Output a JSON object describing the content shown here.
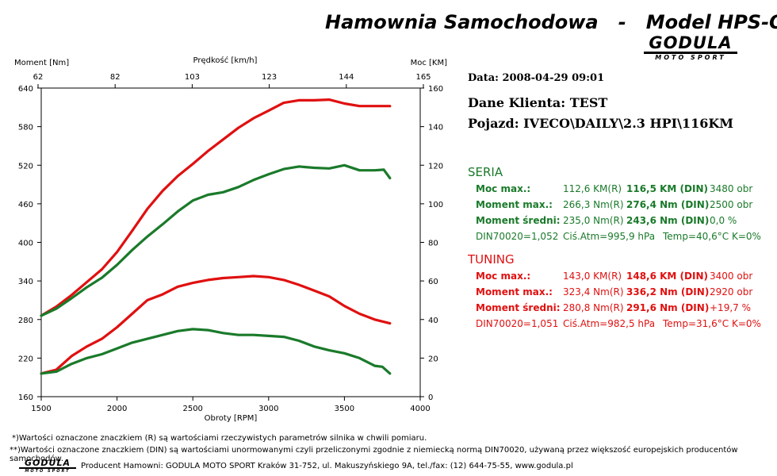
{
  "header": {
    "title": "Hamownia Samochodowa   -   Model HPS-O",
    "logo_brand": "GODULA",
    "logo_sub": "MOTO SPORT"
  },
  "info": {
    "date": "Data: 2008-04-29  09:01",
    "client": "Dane Klienta: TEST",
    "vehicle": "Pojazd: IVECO\\DAILY\\2.3 HPI\\116KM"
  },
  "seria": {
    "title": "SERIA",
    "color": "#1a7a2a",
    "rows": [
      {
        "label": "Moc max.:",
        "r": "112,6 KM(R)",
        "din": "116,5 KM (DIN)",
        "extra": "3480 obr"
      },
      {
        "label": "Moment max.:",
        "r": "266,3 Nm(R)",
        "din": "276,4 Nm (DIN)",
        "extra": "2500 obr"
      },
      {
        "label": "Moment średni:",
        "r": "235,0 Nm(R)",
        "din": "243,6 Nm (DIN)",
        "extra": "0,0 %"
      }
    ],
    "din": {
      "factor": "DIN70020=1,052",
      "atm": "Ciś.Atm=995,9 hPa",
      "temp": "Temp=40,6°C  K=0%"
    }
  },
  "tuning": {
    "title": "TUNING",
    "color": "#e01010",
    "rows": [
      {
        "label": "Moc max.:",
        "r": "143,0 KM(R)",
        "din": "148,6 KM (DIN)",
        "extra": "3400 obr"
      },
      {
        "label": "Moment max.:",
        "r": "323,4 Nm(R)",
        "din": "336,2 Nm (DIN)",
        "extra": "2920 obr"
      },
      {
        "label": "Moment średni:",
        "r": "280,8 Nm(R)",
        "din": "291,6 Nm (DIN)",
        "extra": "+19,7 %"
      }
    ],
    "din": {
      "factor": "DIN70020=1,051",
      "atm": "Ciś.Atm=982,5 hPa",
      "temp": "Temp=31,6°C  K=0%"
    }
  },
  "footer": {
    "note1": "*)Wartości oznaczone znaczkiem (R) są wartościami rzeczywistych parametrów silnika w chwili pomiaru.",
    "note2": "**)Wartości oznaczone znaczkiem (DIN) są wartościami unormowanymi czyli przeliczonymi zgodnie z niemiecką normą DIN70020, używaną przez większość europejskich producentów samochodów.",
    "producer": "Producent Hamowni: GODULA MOTO SPORT Kraków 31-752, ul. Makuszyńskiego 9A, tel./fax: (12) 644-75-55, www.godula.pl"
  },
  "chart_data": {
    "type": "line",
    "xlabel": "Obroty [RPM]",
    "top_axis_label": "Prędkość [km/h]",
    "ylabel_left": "Moment [Nm]",
    "ylabel_right": "Moc [KM]",
    "xlim": [
      1500,
      4000
    ],
    "ylim_left": [
      160,
      640
    ],
    "ylim_right": [
      0,
      160
    ],
    "x_ticks": [
      "1500",
      "2000",
      "2500",
      "3000",
      "3500",
      "4000"
    ],
    "y_ticks_left": [
      "160",
      "220",
      "280",
      "340",
      "400",
      "460",
      "520",
      "580",
      "640"
    ],
    "y_ticks_right": [
      "0",
      "20",
      "40",
      "60",
      "80",
      "100",
      "120",
      "140",
      "160"
    ],
    "top_ticks": [
      "62",
      "82",
      "103",
      "123",
      "144",
      "165"
    ],
    "grid": false,
    "series": [
      {
        "name": "TUNING",
        "axis": "left",
        "color": "#e01010",
        "x": [
          1500,
          1600,
          1700,
          1800,
          1900,
          2000,
          2100,
          2200,
          2300,
          2400,
          2500,
          2600,
          2700,
          2800,
          2900,
          3000,
          3100,
          3200,
          3300,
          3400,
          3500,
          3600,
          3700,
          3800
        ],
        "y": [
          286,
          300,
          318,
          338,
          358,
          385,
          418,
          452,
          480,
          503,
          522,
          542,
          560,
          578,
          593,
          605,
          617,
          621,
          621,
          622,
          616,
          612,
          612,
          612
        ]
      },
      {
        "name": "SERIA",
        "axis": "left",
        "color": "#1a7a2a",
        "x": [
          1500,
          1600,
          1700,
          1800,
          1900,
          2000,
          2100,
          2200,
          2300,
          2400,
          2500,
          2600,
          2700,
          2800,
          2900,
          3000,
          3100,
          3200,
          3300,
          3400,
          3500,
          3600,
          3700,
          3760,
          3800
        ],
        "y": [
          286,
          297,
          313,
          330,
          345,
          365,
          388,
          409,
          428,
          448,
          465,
          474,
          478,
          486,
          497,
          506,
          514,
          518,
          516,
          515,
          520,
          512,
          512,
          513,
          500
        ]
      },
      {
        "name": "TUNING",
        "axis": "right",
        "color": "#e01010",
        "x": [
          1500,
          1600,
          1700,
          1800,
          1900,
          2000,
          2100,
          2200,
          2300,
          2400,
          2500,
          2600,
          2700,
          2800,
          2900,
          3000,
          3100,
          3200,
          3300,
          3400,
          3500,
          3600,
          3700,
          3800
        ],
        "y": [
          12,
          14,
          21,
          26,
          30,
          36,
          43,
          50,
          53,
          57,
          59,
          60.5,
          61.5,
          62,
          62.5,
          62,
          60.5,
          58,
          55,
          52,
          47,
          43,
          40,
          38
        ]
      },
      {
        "name": "SERIA",
        "axis": "right",
        "color": "#1a7a2a",
        "x": [
          1500,
          1600,
          1700,
          1800,
          1900,
          2000,
          2100,
          2200,
          2300,
          2400,
          2500,
          2600,
          2700,
          2800,
          2900,
          3000,
          3100,
          3200,
          3300,
          3400,
          3500,
          3600,
          3700,
          3750,
          3800
        ],
        "y": [
          12,
          13,
          17,
          20,
          22,
          25,
          28,
          30,
          32,
          34,
          35,
          34.5,
          33,
          32,
          32,
          31.5,
          31,
          29,
          26,
          24,
          22.5,
          20,
          16,
          15.5,
          12
        ]
      }
    ]
  }
}
